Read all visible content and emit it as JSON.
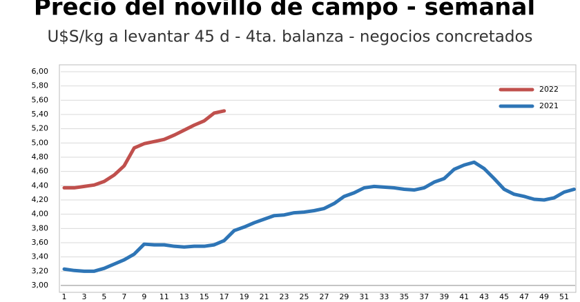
{
  "chart_data": {
    "type": "line",
    "title": "Precio del novillo de campo - semanal",
    "subtitle": "U$S/kg a levantar 45 d - 4ta. balanza - negocios concretados",
    "categories": [
      "1",
      null,
      "3",
      null,
      "5",
      null,
      "7",
      null,
      "9",
      null,
      "11",
      null,
      "13",
      null,
      "15",
      null,
      "17",
      null,
      "19",
      null,
      "21",
      null,
      "23",
      null,
      "25",
      null,
      "27",
      null,
      "29",
      null,
      "31",
      null,
      "33",
      null,
      "35",
      null,
      "37",
      null,
      "39",
      null,
      "41",
      null,
      "43",
      null,
      "45",
      null,
      "47",
      null,
      "49",
      null,
      "51",
      null
    ],
    "series": [
      {
        "name": "2022",
        "color": "#c0504d",
        "values": [
          4.37,
          4.37,
          4.39,
          4.41,
          4.46,
          4.55,
          4.68,
          4.93,
          4.99,
          5.02,
          5.05,
          5.11,
          5.18,
          5.25,
          5.31,
          5.42,
          5.45,
          null,
          null,
          null,
          null,
          null,
          null,
          null,
          null,
          null,
          null,
          null,
          null,
          null,
          null,
          null,
          null,
          null,
          null,
          null,
          null,
          null,
          null,
          null,
          null,
          null,
          null,
          null,
          null,
          null,
          null,
          null,
          null,
          null,
          null,
          null
        ]
      },
      {
        "name": "2021",
        "color": "#2e75b6",
        "values": [
          3.23,
          3.21,
          3.2,
          3.2,
          3.24,
          3.3,
          3.36,
          3.44,
          3.58,
          3.57,
          3.57,
          3.55,
          3.54,
          3.55,
          3.55,
          3.57,
          3.63,
          3.77,
          3.82,
          3.88,
          3.93,
          3.98,
          3.99,
          4.02,
          4.03,
          4.05,
          4.08,
          4.15,
          4.25,
          4.3,
          4.37,
          4.39,
          4.38,
          4.37,
          4.35,
          4.34,
          4.37,
          4.45,
          4.5,
          4.63,
          4.69,
          4.73,
          4.64,
          4.5,
          4.35,
          4.28,
          4.25,
          4.21,
          4.2,
          4.23,
          4.31,
          4.35
        ]
      }
    ],
    "ylim": [
      3,
      6
    ],
    "yticks": [
      {
        "value": 3,
        "label": "3,00"
      },
      {
        "value": 3.2,
        "label": "3,20"
      },
      {
        "value": 3.4,
        "label": "3,40"
      },
      {
        "value": 3.6,
        "label": "3,60"
      },
      {
        "value": 3.8,
        "label": "3,80"
      },
      {
        "value": 4,
        "label": "4,00"
      },
      {
        "value": 4.2,
        "label": "4,20"
      },
      {
        "value": 4.4,
        "label": "4,40"
      },
      {
        "value": 4.6,
        "label": "4,60"
      },
      {
        "value": 4.8,
        "label": "4,80"
      },
      {
        "value": 5,
        "label": "5,00"
      },
      {
        "value": 5.2,
        "label": "5,20"
      },
      {
        "value": 5.4,
        "label": "5,40"
      },
      {
        "value": 5.6,
        "label": "5,60"
      },
      {
        "value": 5.8,
        "label": "5,80"
      },
      {
        "value": 6,
        "label": "6,00"
      }
    ],
    "grid": true,
    "legend": "upper right"
  }
}
